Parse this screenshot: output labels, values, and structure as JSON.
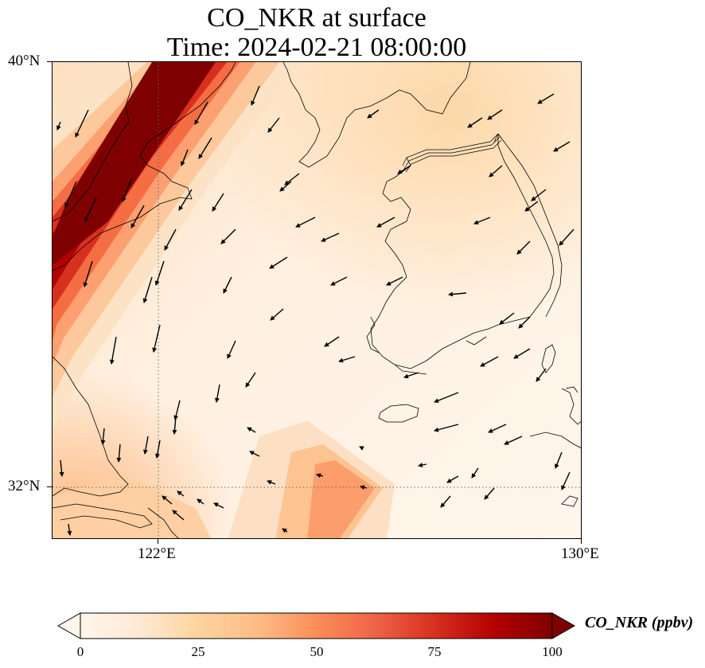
{
  "title": {
    "line1": "CO_NKR at surface",
    "line2": "Time: 2024-02-21 08:00:00"
  },
  "map": {
    "projection": "PlateCarree",
    "lon_range": [
      119,
      130
    ],
    "lat_range": [
      31,
      40
    ],
    "gridlines": {
      "lons": [
        122
      ],
      "lats": [
        32
      ],
      "style": "dotted"
    },
    "x_ticks": [
      "122°E",
      "130°E"
    ],
    "y_ticks": [
      "40°N",
      "32°N"
    ],
    "field_colormap": [
      "#fff5eb",
      "#fdd49e",
      "#fc8d59",
      "#d7301f",
      "#b30000",
      "#7f0000"
    ],
    "field_description_plume": "high CO band along China coast (NE-SW) and a secondary band extending SE from 124E,32N",
    "wind_vectors": "north-westerly to south-westerly flow arrows"
  },
  "colorbar": {
    "label": "CO_NKR (ppbv)",
    "ticks": [
      "0",
      "25",
      "50",
      "75",
      "100"
    ],
    "range": [
      0,
      100
    ],
    "extend": "both",
    "colors": [
      "#fff5eb",
      "#fee6ce",
      "#fdd0a2",
      "#fdae6b",
      "#fd8d3c",
      "#f16913",
      "#d94801",
      "#b30000",
      "#7f0000"
    ]
  }
}
